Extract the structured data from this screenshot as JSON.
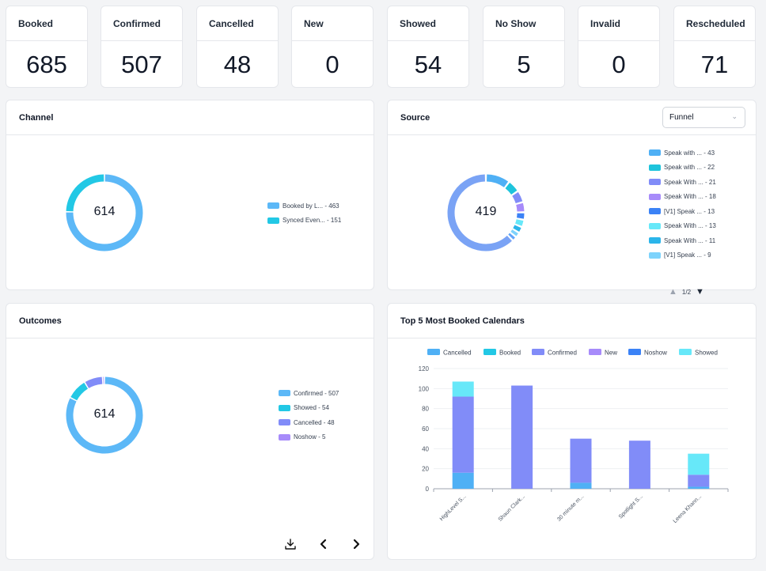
{
  "stats": [
    {
      "label": "Booked",
      "value": "685"
    },
    {
      "label": "Confirmed",
      "value": "507"
    },
    {
      "label": "Cancelled",
      "value": "48"
    },
    {
      "label": "New",
      "value": "0"
    },
    {
      "label": "Showed",
      "value": "54"
    },
    {
      "label": "No Show",
      "value": "5"
    },
    {
      "label": "Invalid",
      "value": "0"
    },
    {
      "label": "Rescheduled",
      "value": "71"
    }
  ],
  "channel": {
    "title": "Channel",
    "total": "614",
    "legend": [
      {
        "label": "Booked by L... - 463",
        "color": "#5cb8f7"
      },
      {
        "label": "Synced Even... - 151",
        "color": "#22c8e5"
      }
    ],
    "slices": [
      463,
      151
    ],
    "colors": [
      "#5cb8f7",
      "#22c8e5"
    ]
  },
  "source": {
    "title": "Source",
    "filter": "Funnel",
    "total": "419",
    "legend": [
      {
        "label": "Speak with ... - 43",
        "color": "#4fb0f5"
      },
      {
        "label": "Speak with ... - 22",
        "color": "#1ec4dc"
      },
      {
        "label": "Speak With ... - 21",
        "color": "#818cf8"
      },
      {
        "label": "Speak With ... - 18",
        "color": "#a78bfa"
      },
      {
        "label": "[V1] Speak ... - 13",
        "color": "#3b82f6"
      },
      {
        "label": "Speak With ... - 13",
        "color": "#67e8f9"
      },
      {
        "label": "Speak With ... - 11",
        "color": "#2bb5ea"
      },
      {
        "label": "[V1] Speak ... - 9",
        "color": "#7dd3fc"
      }
    ],
    "pager": "1/2",
    "slices": [
      43,
      22,
      21,
      18,
      13,
      13,
      11,
      9,
      8,
      261
    ],
    "colors": [
      "#4fb0f5",
      "#1ec4dc",
      "#818cf8",
      "#a78bfa",
      "#3b82f6",
      "#67e8f9",
      "#2bb5ea",
      "#7dd3fc",
      "#60a5fa",
      "#7aa3f5"
    ]
  },
  "outcomes": {
    "title": "Outcomes",
    "total": "614",
    "legend": [
      {
        "label": "Confirmed - 507",
        "color": "#5cb8f7"
      },
      {
        "label": "Showed - 54",
        "color": "#22c8e5"
      },
      {
        "label": "Cancelled - 48",
        "color": "#818cf8"
      },
      {
        "label": "Noshow - 5",
        "color": "#a78bfa"
      }
    ],
    "slices": [
      507,
      54,
      48,
      5
    ],
    "colors": [
      "#5cb8f7",
      "#22c8e5",
      "#818cf8",
      "#a78bfa"
    ]
  },
  "chart_data": {
    "type": "bar",
    "title": "Top 5 Most Booked Calendars",
    "categories": [
      "HighLevel S...",
      "Shaun Clark...",
      "30 minute m...",
      "Spotlight S...",
      "Leena Khann..."
    ],
    "series": [
      {
        "name": "Cancelled",
        "color": "#4fb0f5",
        "values": [
          16,
          0,
          6,
          0,
          2
        ]
      },
      {
        "name": "Booked",
        "color": "#22c8e5",
        "values": [
          0,
          0,
          0,
          0,
          0
        ]
      },
      {
        "name": "Confirmed",
        "color": "#818cf8",
        "values": [
          76,
          103,
          44,
          48,
          12
        ]
      },
      {
        "name": "New",
        "color": "#a78bfa",
        "values": [
          0,
          0,
          0,
          0,
          0
        ]
      },
      {
        "name": "Noshow",
        "color": "#3b82f6",
        "values": [
          0,
          0,
          0,
          0,
          0
        ]
      },
      {
        "name": "Showed",
        "color": "#67e8f9",
        "values": [
          15,
          0,
          0,
          0,
          21
        ]
      }
    ],
    "yticks": [
      "0",
      "20",
      "40",
      "60",
      "80",
      "100",
      "120"
    ],
    "ylim": [
      0,
      120
    ]
  }
}
